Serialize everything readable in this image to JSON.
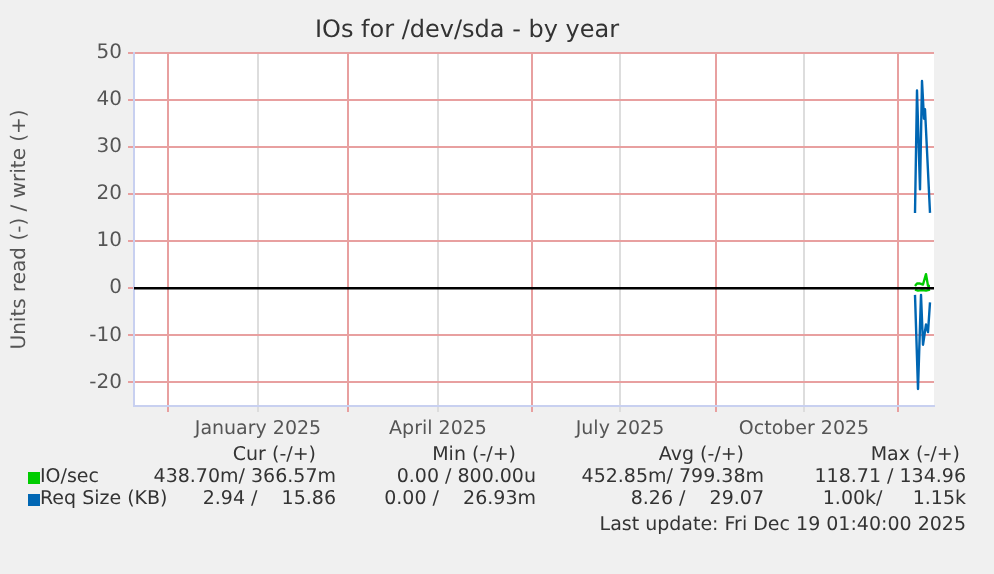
{
  "chart_data": {
    "type": "line",
    "title": "IOs for /dev/sda - by year",
    "ylabel": "Units read (-) / write (+)",
    "xlim": [
      "2024-11-14",
      "2025-12-19"
    ],
    "xticks": [
      {
        "value": "2024-12-01",
        "label": null
      },
      {
        "value": "2025-01-15",
        "label": "January 2025"
      },
      {
        "value": "2025-03-01",
        "label": null
      },
      {
        "value": "2025-04-15",
        "label": "April 2025"
      },
      {
        "value": "2025-06-01",
        "label": null
      },
      {
        "value": "2025-07-15",
        "label": "July 2025"
      },
      {
        "value": "2025-09-01",
        "label": null
      },
      {
        "value": "2025-10-15",
        "label": "October 2025"
      },
      {
        "value": "2025-12-01",
        "label": null
      }
    ],
    "ylim": [
      -25,
      50
    ],
    "yticks": [
      -20,
      -10,
      0,
      10,
      20,
      30,
      40,
      50
    ],
    "grid": true,
    "legend": "bottom",
    "marker": "none",
    "line_style": "solid",
    "ref_lines": [
      {
        "axis": "y",
        "value": 0,
        "color": "#000000"
      }
    ],
    "series": [
      {
        "name": "IO/sec",
        "color": "#00cc00",
        "x": [
          "2025-12-09T12:00",
          "2025-12-10T12:00",
          "2025-12-12T00:00",
          "2025-12-13T12:00",
          "2025-12-15T00:00",
          "2025-12-16T00:00",
          "2025-12-17T00:00"
        ],
        "values": [
          0.5,
          1,
          1,
          0.8,
          3,
          0.5,
          0.5
        ]
      },
      {
        "color": "#00cc00",
        "x": [
          "2025-12-09T12:00",
          "2025-12-11T00:00",
          "2025-12-13T00:00",
          "2025-12-15T00:00",
          "2025-12-17T00:00"
        ],
        "values": [
          -0.3,
          -0.5,
          -0.4,
          -0.5,
          -0.3
        ]
      },
      {
        "name": "Req Size (KB)",
        "color": "#0066b3",
        "x": [
          "2025-12-09T12:00",
          "2025-12-10T12:00",
          "2025-12-12T00:00",
          "2025-12-13T00:00",
          "2025-12-14T00:00",
          "2025-12-14T12:00",
          "2025-12-17T00:00"
        ],
        "values": [
          16,
          42,
          21,
          44,
          36,
          38,
          16
        ]
      },
      {
        "color": "#0066b3",
        "x": [
          "2025-12-09T12:00",
          "2025-12-11T00:00",
          "2025-12-12T12:00",
          "2025-12-13T12:00",
          "2025-12-15T00:00",
          "2025-12-16T00:00",
          "2025-12-17T00:00"
        ],
        "values": [
          -1.4,
          -21.4,
          -1.4,
          -12,
          -7.7,
          -9.3,
          -3
        ]
      }
    ],
    "annotations": [
      "Cur (-/+)",
      "Min (-/+)",
      "Avg (-/+)",
      "Max (-/+)",
      "438.70m/ 366.57m",
      "0.00 / 800.00u",
      "452.85m/ 799.38m",
      "118.71 / 134.96",
      "2.94 /    15.86",
      "0.00 /    26.93m",
      "8.26 /    29.07",
      "1.00k/     1.15k",
      "Last update: Fri Dec 19 01:40:00 2025"
    ]
  }
}
